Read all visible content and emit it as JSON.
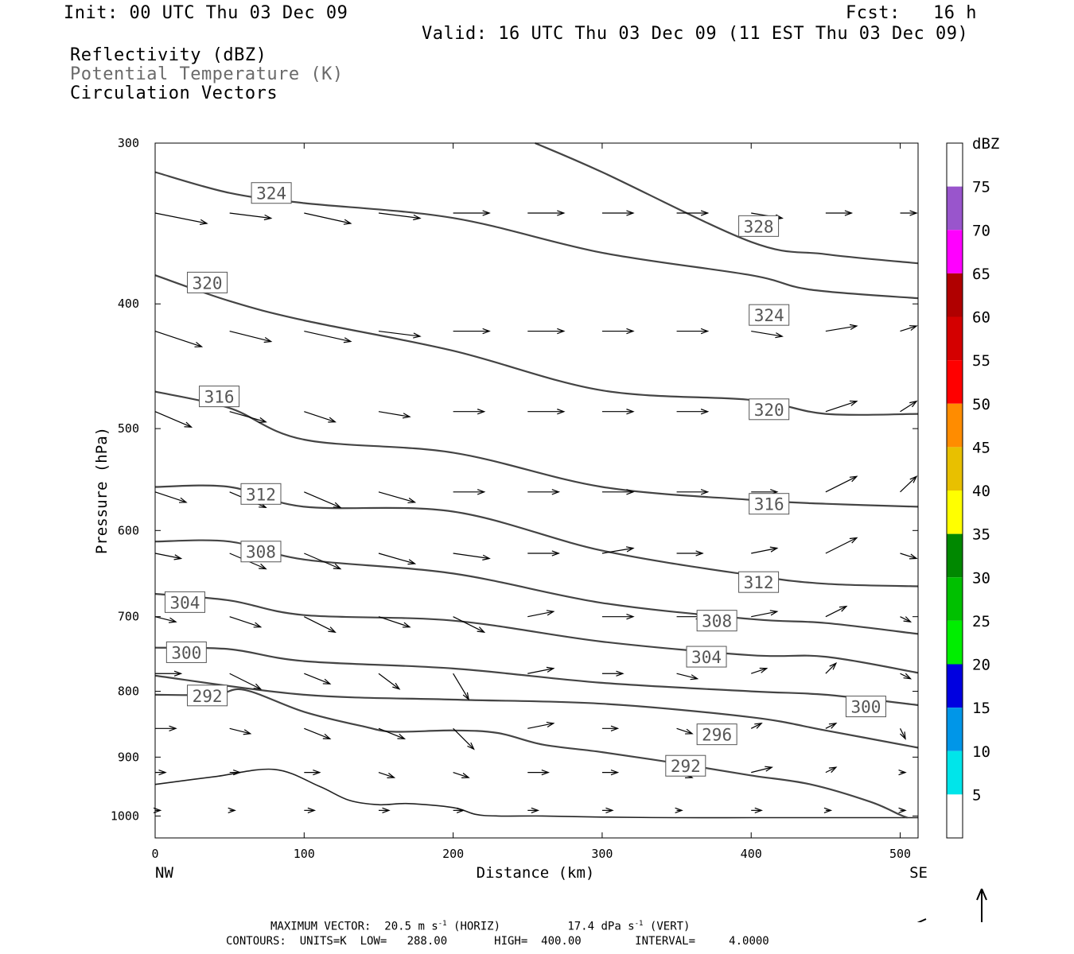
{
  "header": {
    "init": "Init: 00 UTC Thu 03 Dec 09",
    "fcst": "Fcst:   16 h",
    "valid": "Valid: 16 UTC Thu 03 Dec 09 (11 EST Thu 03 Dec 09)",
    "fields": [
      "Reflectivity (dBZ)",
      "Potential Temperature (K)",
      "Circulation Vectors"
    ]
  },
  "chart_data": {
    "type": "line",
    "xlabel": "Distance (km)",
    "ylabel": "Pressure (hPa)",
    "xlim": [
      0,
      512
    ],
    "ylim": [
      1040,
      300
    ],
    "y_scale": "log",
    "x_ticks": [
      0,
      100,
      200,
      300,
      400,
      500
    ],
    "y_ticks": [
      300,
      400,
      500,
      600,
      700,
      800,
      900,
      1000
    ],
    "x_end_labels": {
      "left": "NW",
      "right": "SE"
    },
    "ground": {
      "name": "",
      "x": [
        0,
        40,
        80,
        110,
        130,
        150,
        170,
        200,
        215,
        230,
        260,
        300,
        350,
        400,
        450,
        512
      ],
      "y": [
        945,
        932,
        920,
        948,
        972,
        980,
        978,
        985,
        997,
        1000,
        1000,
        1002,
        1003,
        1003,
        1003,
        1003
      ]
    },
    "series": [
      {
        "name": "292",
        "x": [
          0,
          40,
          60,
          100,
          140,
          160,
          200,
          230,
          260,
          300,
          350,
          400,
          440,
          480,
          500,
          505
        ],
        "y": [
          805,
          805,
          798,
          830,
          852,
          860,
          858,
          862,
          880,
          892,
          910,
          930,
          945,
          975,
          998,
          1003
        ]
      },
      {
        "name": "296",
        "x": [
          0,
          100,
          200,
          300,
          400,
          450,
          512
        ],
        "y": [
          778,
          805,
          812,
          818,
          838,
          858,
          885
        ]
      },
      {
        "name": "300",
        "x": [
          0,
          50,
          100,
          200,
          300,
          400,
          450,
          512
        ],
        "y": [
          740,
          742,
          758,
          768,
          788,
          800,
          805,
          820
        ]
      },
      {
        "name": "304",
        "x": [
          0,
          50,
          100,
          200,
          300,
          400,
          450,
          512
        ],
        "y": [
          672,
          680,
          698,
          705,
          732,
          750,
          752,
          774
        ]
      },
      {
        "name": "308",
        "x": [
          0,
          50,
          100,
          200,
          300,
          400,
          450,
          512
        ],
        "y": [
          612,
          612,
          632,
          648,
          683,
          703,
          708,
          722
        ]
      },
      {
        "name": "312",
        "x": [
          0,
          50,
          100,
          200,
          300,
          400,
          450,
          512
        ],
        "y": [
          555,
          555,
          575,
          580,
          622,
          650,
          660,
          663
        ]
      },
      {
        "name": "316",
        "x": [
          0,
          50,
          100,
          200,
          300,
          400,
          450,
          512
        ],
        "y": [
          468,
          482,
          510,
          522,
          555,
          568,
          572,
          575
        ]
      },
      {
        "name": "320",
        "x": [
          0,
          50,
          100,
          200,
          300,
          400,
          450,
          512
        ],
        "y": [
          380,
          398,
          412,
          435,
          467,
          475,
          487,
          487
        ]
      },
      {
        "name": "324",
        "x": [
          0,
          50,
          100,
          200,
          300,
          400,
          440,
          512
        ],
        "y": [
          316,
          328,
          334,
          343,
          365,
          380,
          390,
          396
        ]
      },
      {
        "name": "328",
        "x": [
          255,
          300,
          400,
          450,
          512
        ],
        "y": [
          300,
          316,
          358,
          366,
          372
        ]
      }
    ],
    "contour_labels": [
      {
        "text": "324",
        "x": 78,
        "y": 328
      },
      {
        "text": "328",
        "x": 405,
        "y": 348
      },
      {
        "text": "320",
        "x": 35,
        "y": 385
      },
      {
        "text": "324",
        "x": 412,
        "y": 408
      },
      {
        "text": "316",
        "x": 43,
        "y": 472
      },
      {
        "text": "320",
        "x": 412,
        "y": 483
      },
      {
        "text": "312",
        "x": 71,
        "y": 562
      },
      {
        "text": "316",
        "x": 412,
        "y": 572
      },
      {
        "text": "308",
        "x": 71,
        "y": 623
      },
      {
        "text": "312",
        "x": 405,
        "y": 658
      },
      {
        "text": "304",
        "x": 20,
        "y": 682
      },
      {
        "text": "308",
        "x": 377,
        "y": 705
      },
      {
        "text": "300",
        "x": 21,
        "y": 746
      },
      {
        "text": "304",
        "x": 370,
        "y": 752
      },
      {
        "text": "292",
        "x": 35,
        "y": 806
      },
      {
        "text": "300",
        "x": 477,
        "y": 822
      },
      {
        "text": "296",
        "x": 377,
        "y": 864
      },
      {
        "text": "292",
        "x": 356,
        "y": 914
      }
    ],
    "vectors": {
      "columns_x": [
        0,
        50,
        100,
        150,
        200,
        250,
        300,
        350,
        400,
        450,
        500
      ],
      "rows_p": [
        340,
        420,
        485,
        560,
        625,
        700,
        775,
        855,
        925,
        990
      ],
      "u": [
        [
          10,
          8,
          9,
          8,
          7,
          7,
          6,
          6,
          6,
          5,
          5
        ],
        [
          9,
          8,
          9,
          8,
          7,
          7,
          6,
          6,
          6,
          6,
          5
        ],
        [
          7,
          7,
          6,
          6,
          6,
          7,
          6,
          6,
          6,
          6,
          5
        ],
        [
          6,
          7,
          7,
          7,
          6,
          6,
          6,
          6,
          5,
          6,
          4
        ],
        [
          5,
          7,
          7,
          7,
          7,
          6,
          6,
          5,
          5,
          6,
          4
        ],
        [
          4,
          6,
          6,
          6,
          6,
          5,
          6,
          5,
          5,
          4,
          2
        ],
        [
          5,
          6,
          5,
          4,
          3,
          5,
          4,
          4,
          3,
          2,
          2
        ],
        [
          4,
          4,
          5,
          5,
          4,
          5,
          3,
          3,
          2,
          2,
          1
        ],
        [
          2,
          2,
          3,
          3,
          3,
          4,
          3,
          3,
          4,
          2,
          1
        ],
        [
          1,
          1,
          2,
          2,
          2,
          2,
          2,
          1,
          2,
          1,
          1
        ]
      ],
      "w": [
        [
          -2,
          -1,
          -2,
          -1,
          0,
          0,
          0,
          0,
          -1,
          0,
          0
        ],
        [
          -3,
          -2,
          -2,
          -1,
          0,
          0,
          0,
          0,
          -1,
          1,
          1
        ],
        [
          -3,
          -2,
          -2,
          -1,
          0,
          0,
          0,
          0,
          0,
          2,
          2
        ],
        [
          -2,
          -3,
          -3,
          -2,
          0,
          0,
          0,
          0,
          0,
          3,
          3
        ],
        [
          -1,
          -3,
          -3,
          -2,
          -1,
          0,
          1,
          0,
          1,
          3,
          -1
        ],
        [
          -1,
          -2,
          -3,
          -2,
          -3,
          1,
          0,
          0,
          1,
          2,
          -1
        ],
        [
          0,
          -3,
          -2,
          -3,
          -5,
          1,
          0,
          -1,
          1,
          2,
          -1
        ],
        [
          0,
          -1,
          -2,
          -2,
          -4,
          1,
          0,
          -1,
          1,
          1,
          -2
        ],
        [
          0,
          0,
          0,
          -1,
          -1,
          0,
          0,
          -1,
          1,
          1,
          0
        ],
        [
          0,
          0,
          0,
          0,
          0,
          0,
          0,
          0,
          0,
          0,
          0
        ]
      ]
    },
    "colorbar": {
      "label": "dBZ",
      "levels": [
        5,
        10,
        15,
        20,
        25,
        30,
        35,
        40,
        45,
        50,
        55,
        60,
        65,
        70,
        75
      ],
      "colors": [
        "#ffffff",
        "#00e5ea",
        "#0096e8",
        "#0000e0",
        "#00ee00",
        "#00c000",
        "#008800",
        "#ffff00",
        "#e8c000",
        "#ff8c00",
        "#ff0000",
        "#d40000",
        "#b00000",
        "#ff00ff",
        "#9955cc"
      ]
    }
  },
  "footer": {
    "max_vector_label": "MAXIMUM VECTOR:",
    "horiz": "20.5 m s",
    "horiz_exp": "-1",
    "horiz_tag": "(HORIZ)",
    "vert": "17.4 dPa s",
    "vert_exp": "-1",
    "vert_tag": "(VERT)",
    "contours": "CONTOURS:  UNITS=K  LOW=   288.00       HIGH=  400.00        INTERVAL=     4.0000"
  }
}
